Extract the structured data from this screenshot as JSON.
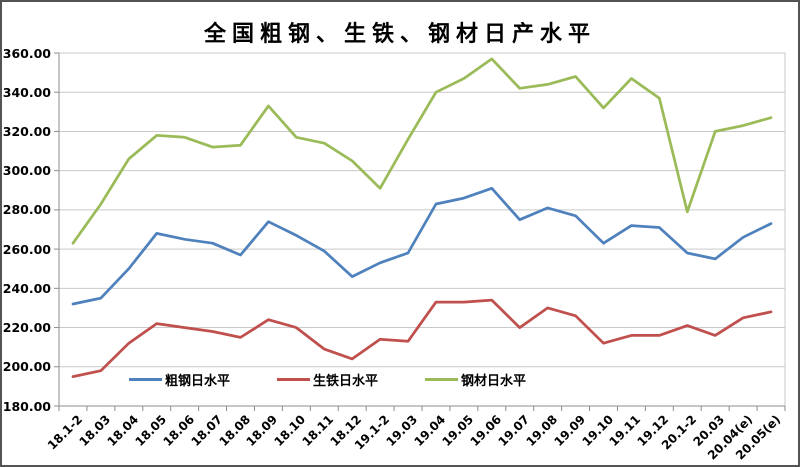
{
  "title": "全国粗钢、生铁、钢材日产水平",
  "chart_data": {
    "type": "line",
    "categories": [
      "18.1-2",
      "18.03",
      "18.04",
      "18.05",
      "18.06",
      "18.07",
      "18.08",
      "18.09",
      "18.10",
      "18.11",
      "18.12",
      "19.1-2",
      "19.03",
      "19.04",
      "19.05",
      "19.06",
      "19.07",
      "19.08",
      "19.09",
      "19.10",
      "19.11",
      "19.12",
      "20.1-2",
      "20.03",
      "20.04(e)",
      "20.05(e)"
    ],
    "series": [
      {
        "name": "粗钢日水平",
        "color": "#4F81BD",
        "values": [
          232,
          235,
          250,
          268,
          265,
          263,
          257,
          274,
          267,
          259,
          246,
          253,
          258,
          283,
          286,
          291,
          275,
          281,
          277,
          263,
          272,
          271,
          258,
          255,
          266,
          273
        ]
      },
      {
        "name": "生铁日水平",
        "color": "#C0504D",
        "values": [
          195,
          198,
          212,
          222,
          220,
          218,
          215,
          224,
          220,
          209,
          204,
          214,
          213,
          233,
          233,
          234,
          220,
          230,
          226,
          212,
          216,
          216,
          221,
          216,
          225,
          228
        ]
      },
      {
        "name": "钢材日水平",
        "color": "#9BBB59",
        "values": [
          263,
          283,
          306,
          318,
          317,
          312,
          313,
          333,
          317,
          314,
          305,
          291,
          316,
          340,
          347,
          357,
          342,
          344,
          348,
          332,
          347,
          337,
          279,
          320,
          323,
          327
        ]
      }
    ],
    "ylim": [
      180,
      360
    ],
    "ytick_step": 20,
    "ytick_decimals": 2,
    "grid": true,
    "legend_position": "bottom-inside",
    "xlabel": "",
    "ylabel": ""
  },
  "colors": {
    "gridline": "#C9C9C9",
    "axis": "#8C8C8C",
    "background": "#FFFFFF",
    "text": "#000000"
  }
}
